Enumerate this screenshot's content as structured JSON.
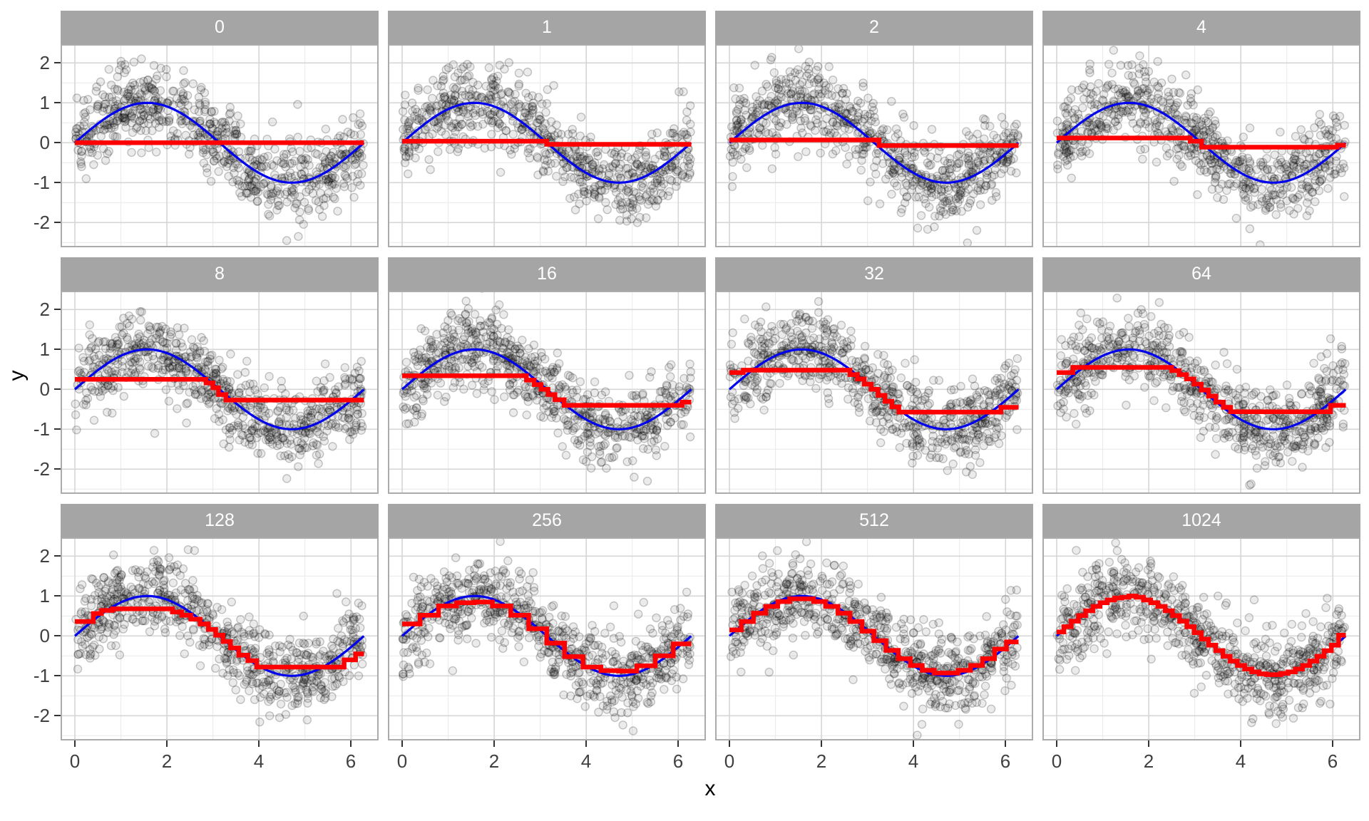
{
  "chart_data": {
    "type": "scatter",
    "layout": "facet_grid_3x4",
    "xlabel": "x",
    "ylabel": "y",
    "x_ticks": [
      0,
      2,
      4,
      6
    ],
    "y_ticks": [
      2,
      1,
      0,
      -1,
      -2
    ],
    "x_minor_ticks": [
      1,
      3,
      5
    ],
    "y_minor_ticks": [
      -2.5,
      -1.5,
      -0.5,
      0.5,
      1.5
    ],
    "xlim": [
      -0.31,
      6.6
    ],
    "ylim": [
      -2.62,
      2.47
    ],
    "grid": true,
    "legend": "none",
    "true_curve": {
      "name": "sin(x)",
      "x_min": 0,
      "x_max": 6.283,
      "amplitude": 1
    },
    "scatter": {
      "model": "y = sin(x) + normal(0, 0.5)",
      "n_per_facet": 720,
      "x_min": 0.01,
      "x_max": 6.27,
      "noise_sd": 0.5,
      "point_radius_px": 5.5,
      "seed_base": 42
    },
    "facets": [
      {
        "label": "0",
        "fit_segments": [
          [
            0,
            6.283,
            0.0
          ]
        ]
      },
      {
        "label": "1",
        "fit_segments": [
          [
            0,
            3.14,
            0.04
          ],
          [
            3.14,
            6.283,
            -0.04
          ]
        ]
      },
      {
        "label": "2",
        "fit_segments": [
          [
            0,
            3.25,
            0.07
          ],
          [
            3.25,
            6.283,
            -0.07
          ]
        ]
      },
      {
        "label": "4",
        "fit_segments": [
          [
            0,
            2.9,
            0.12
          ],
          [
            2.9,
            3.15,
            0.04
          ],
          [
            3.15,
            6.1,
            -0.11
          ],
          [
            6.1,
            6.283,
            -0.06
          ]
        ]
      },
      {
        "label": "8",
        "fit_segments": [
          [
            0,
            2.85,
            0.25
          ],
          [
            2.85,
            3.0,
            0.16
          ],
          [
            3.0,
            3.12,
            0.04
          ],
          [
            3.12,
            3.28,
            -0.13
          ],
          [
            3.28,
            6.283,
            -0.27
          ]
        ]
      },
      {
        "label": "16",
        "fit_segments": [
          [
            0,
            2.7,
            0.34
          ],
          [
            2.7,
            2.87,
            0.23
          ],
          [
            2.87,
            3.02,
            0.12
          ],
          [
            3.02,
            3.17,
            0.0
          ],
          [
            3.17,
            3.32,
            -0.13
          ],
          [
            3.32,
            3.52,
            -0.26
          ],
          [
            3.52,
            6.08,
            -0.4
          ],
          [
            6.08,
            6.283,
            -0.32
          ]
        ]
      },
      {
        "label": "32",
        "fit_segments": [
          [
            0,
            0.3,
            0.42
          ],
          [
            0.3,
            2.62,
            0.48
          ],
          [
            2.62,
            2.78,
            0.37
          ],
          [
            2.78,
            2.93,
            0.26
          ],
          [
            2.93,
            3.08,
            0.13
          ],
          [
            3.08,
            3.23,
            0.0
          ],
          [
            3.23,
            3.38,
            -0.15
          ],
          [
            3.38,
            3.53,
            -0.3
          ],
          [
            3.53,
            3.68,
            -0.44
          ],
          [
            3.68,
            5.9,
            -0.57
          ],
          [
            5.9,
            6.283,
            -0.45
          ]
        ]
      },
      {
        "label": "64",
        "fit_segments": [
          [
            0,
            0.35,
            0.42
          ],
          [
            0.35,
            2.5,
            0.55
          ],
          [
            2.5,
            2.66,
            0.47
          ],
          [
            2.66,
            2.82,
            0.37
          ],
          [
            2.82,
            2.98,
            0.26
          ],
          [
            2.98,
            3.14,
            0.13
          ],
          [
            3.14,
            3.3,
            -0.02
          ],
          [
            3.3,
            3.46,
            -0.17
          ],
          [
            3.46,
            3.62,
            -0.32
          ],
          [
            3.62,
            3.78,
            -0.45
          ],
          [
            3.78,
            5.95,
            -0.56
          ],
          [
            5.95,
            6.283,
            -0.4
          ]
        ]
      },
      {
        "label": "128",
        "fit_segments": [
          [
            0,
            0.4,
            0.36
          ],
          [
            0.4,
            0.58,
            0.56
          ],
          [
            0.58,
            0.82,
            0.64
          ],
          [
            0.82,
            2.12,
            0.68
          ],
          [
            2.12,
            2.32,
            0.6
          ],
          [
            2.32,
            2.52,
            0.52
          ],
          [
            2.52,
            2.72,
            0.42
          ],
          [
            2.72,
            2.9,
            0.3
          ],
          [
            2.9,
            3.06,
            0.16
          ],
          [
            3.06,
            3.22,
            0.02
          ],
          [
            3.22,
            3.38,
            -0.14
          ],
          [
            3.38,
            3.56,
            -0.3
          ],
          [
            3.56,
            3.76,
            -0.48
          ],
          [
            3.76,
            3.95,
            -0.62
          ],
          [
            3.95,
            5.85,
            -0.78
          ],
          [
            5.85,
            6.1,
            -0.6
          ],
          [
            6.1,
            6.283,
            -0.45
          ]
        ]
      },
      {
        "label": "256",
        "fit_segments": [
          [
            0,
            0.39,
            0.3
          ],
          [
            0.39,
            0.79,
            0.52
          ],
          [
            0.79,
            1.18,
            0.75
          ],
          [
            1.18,
            1.57,
            0.83
          ],
          [
            1.57,
            1.96,
            0.85
          ],
          [
            1.96,
            2.36,
            0.75
          ],
          [
            2.36,
            2.75,
            0.52
          ],
          [
            2.75,
            3.14,
            0.18
          ],
          [
            3.14,
            3.53,
            -0.18
          ],
          [
            3.53,
            3.93,
            -0.52
          ],
          [
            3.93,
            4.32,
            -0.78
          ],
          [
            4.32,
            4.71,
            -0.87
          ],
          [
            4.71,
            5.1,
            -0.88
          ],
          [
            5.1,
            5.5,
            -0.75
          ],
          [
            5.5,
            5.89,
            -0.5
          ],
          [
            5.89,
            6.283,
            -0.2
          ]
        ]
      },
      {
        "label": "512",
        "fit_segments": [
          [
            0,
            0.26,
            0.15
          ],
          [
            0.26,
            0.52,
            0.36
          ],
          [
            0.52,
            0.79,
            0.57
          ],
          [
            0.79,
            1.05,
            0.74
          ],
          [
            1.05,
            1.31,
            0.86
          ],
          [
            1.31,
            1.57,
            0.93
          ],
          [
            1.57,
            1.83,
            0.93
          ],
          [
            1.83,
            2.09,
            0.86
          ],
          [
            2.09,
            2.36,
            0.74
          ],
          [
            2.36,
            2.62,
            0.57
          ],
          [
            2.62,
            2.88,
            0.36
          ],
          [
            2.88,
            3.14,
            0.12
          ],
          [
            3.14,
            3.4,
            -0.12
          ],
          [
            3.4,
            3.67,
            -0.36
          ],
          [
            3.67,
            3.93,
            -0.57
          ],
          [
            3.93,
            4.19,
            -0.74
          ],
          [
            4.19,
            4.45,
            -0.86
          ],
          [
            4.45,
            4.71,
            -0.93
          ],
          [
            4.71,
            4.97,
            -0.93
          ],
          [
            4.97,
            5.24,
            -0.86
          ],
          [
            5.24,
            5.5,
            -0.74
          ],
          [
            5.5,
            5.76,
            -0.57
          ],
          [
            5.76,
            6.02,
            -0.33
          ],
          [
            6.02,
            6.283,
            -0.15
          ]
        ]
      },
      {
        "label": "1024",
        "fit_segments": [
          [
            0,
            0.157,
            0.1
          ],
          [
            0.157,
            0.314,
            0.23
          ],
          [
            0.314,
            0.471,
            0.37
          ],
          [
            0.471,
            0.628,
            0.51
          ],
          [
            0.628,
            0.785,
            0.63
          ],
          [
            0.785,
            0.942,
            0.74
          ],
          [
            0.942,
            1.1,
            0.83
          ],
          [
            1.1,
            1.257,
            0.9
          ],
          [
            1.257,
            1.414,
            0.95
          ],
          [
            1.414,
            1.571,
            0.97
          ],
          [
            1.571,
            1.728,
            1.0
          ],
          [
            1.728,
            1.885,
            0.97
          ],
          [
            1.885,
            2.042,
            0.9
          ],
          [
            2.042,
            2.199,
            0.83
          ],
          [
            2.199,
            2.356,
            0.74
          ],
          [
            2.356,
            2.513,
            0.63
          ],
          [
            2.513,
            2.67,
            0.51
          ],
          [
            2.67,
            2.827,
            0.37
          ],
          [
            2.827,
            2.985,
            0.23
          ],
          [
            2.985,
            3.142,
            0.08
          ],
          [
            3.142,
            3.299,
            -0.08
          ],
          [
            3.299,
            3.456,
            -0.23
          ],
          [
            3.456,
            3.613,
            -0.37
          ],
          [
            3.613,
            3.77,
            -0.51
          ],
          [
            3.77,
            3.927,
            -0.63
          ],
          [
            3.927,
            4.084,
            -0.74
          ],
          [
            4.084,
            4.241,
            -0.83
          ],
          [
            4.241,
            4.398,
            -0.9
          ],
          [
            4.398,
            4.555,
            -0.95
          ],
          [
            4.555,
            4.712,
            -0.97
          ],
          [
            4.712,
            4.869,
            -0.97
          ],
          [
            4.869,
            5.027,
            -0.94
          ],
          [
            5.027,
            5.184,
            -0.9
          ],
          [
            5.184,
            5.341,
            -0.83
          ],
          [
            5.341,
            5.498,
            -0.74
          ],
          [
            5.498,
            5.655,
            -0.63
          ],
          [
            5.655,
            5.812,
            -0.51
          ],
          [
            5.812,
            5.969,
            -0.37
          ],
          [
            5.969,
            6.126,
            -0.23
          ],
          [
            6.126,
            6.283,
            0.02
          ]
        ]
      }
    ]
  },
  "style": {
    "fit_line_color": "#FF0000",
    "true_line_color": "#0000EE",
    "point_color": "#000000",
    "strip_bg": "#A5A5A5",
    "strip_text": "#FFFFFF",
    "panel_bg": "#FFFFFF",
    "panel_border": "#ABABAB",
    "grid_major": "#D6D6D6",
    "grid_minor": "#EBEBEB",
    "tick_mark_color": "#333333",
    "tick_label_color": "#404040",
    "axis_title_color": "#000000",
    "background": "#FFFFFF"
  }
}
